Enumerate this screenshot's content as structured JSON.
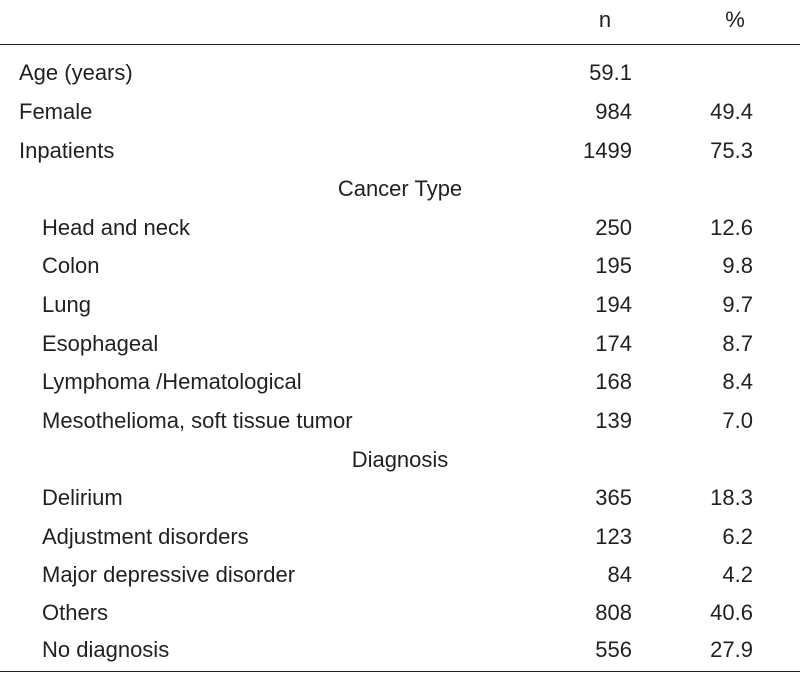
{
  "header": {
    "n_label": "n",
    "pct_label": "%"
  },
  "rows": [
    {
      "label": "Age (years)",
      "n": "59.1",
      "pct": ""
    },
    {
      "label": "Female",
      "n": "984",
      "pct": "49.4"
    },
    {
      "label": "Inpatients",
      "n": "1499",
      "pct": "75.3"
    }
  ],
  "sections": [
    {
      "title": "Cancer Type",
      "rows": [
        {
          "label": "Head and neck",
          "n": "250",
          "pct": "12.6"
        },
        {
          "label": "Colon",
          "n": "195",
          "pct": "9.8"
        },
        {
          "label": "Lung",
          "n": "194",
          "pct": "9.7"
        },
        {
          "label": "Esophageal",
          "n": "174",
          "pct": "8.7"
        },
        {
          "label": "Lymphoma /Hematological",
          "n": "168",
          "pct": "8.4"
        },
        {
          "label": "Mesothelioma, soft tissue tumor",
          "n": "139",
          "pct": "7.0"
        }
      ]
    },
    {
      "title": "Diagnosis",
      "rows": [
        {
          "label": "Delirium",
          "n": "365",
          "pct": "18.3"
        },
        {
          "label": "Adjustment disorders",
          "n": "123",
          "pct": "6.2"
        },
        {
          "label": "Major depressive disorder",
          "n": "84",
          "pct": "4.2"
        },
        {
          "label": "Others",
          "n": "808",
          "pct": "40.6"
        },
        {
          "label": "No diagnosis",
          "n": "556",
          "pct": "27.9"
        }
      ]
    }
  ]
}
